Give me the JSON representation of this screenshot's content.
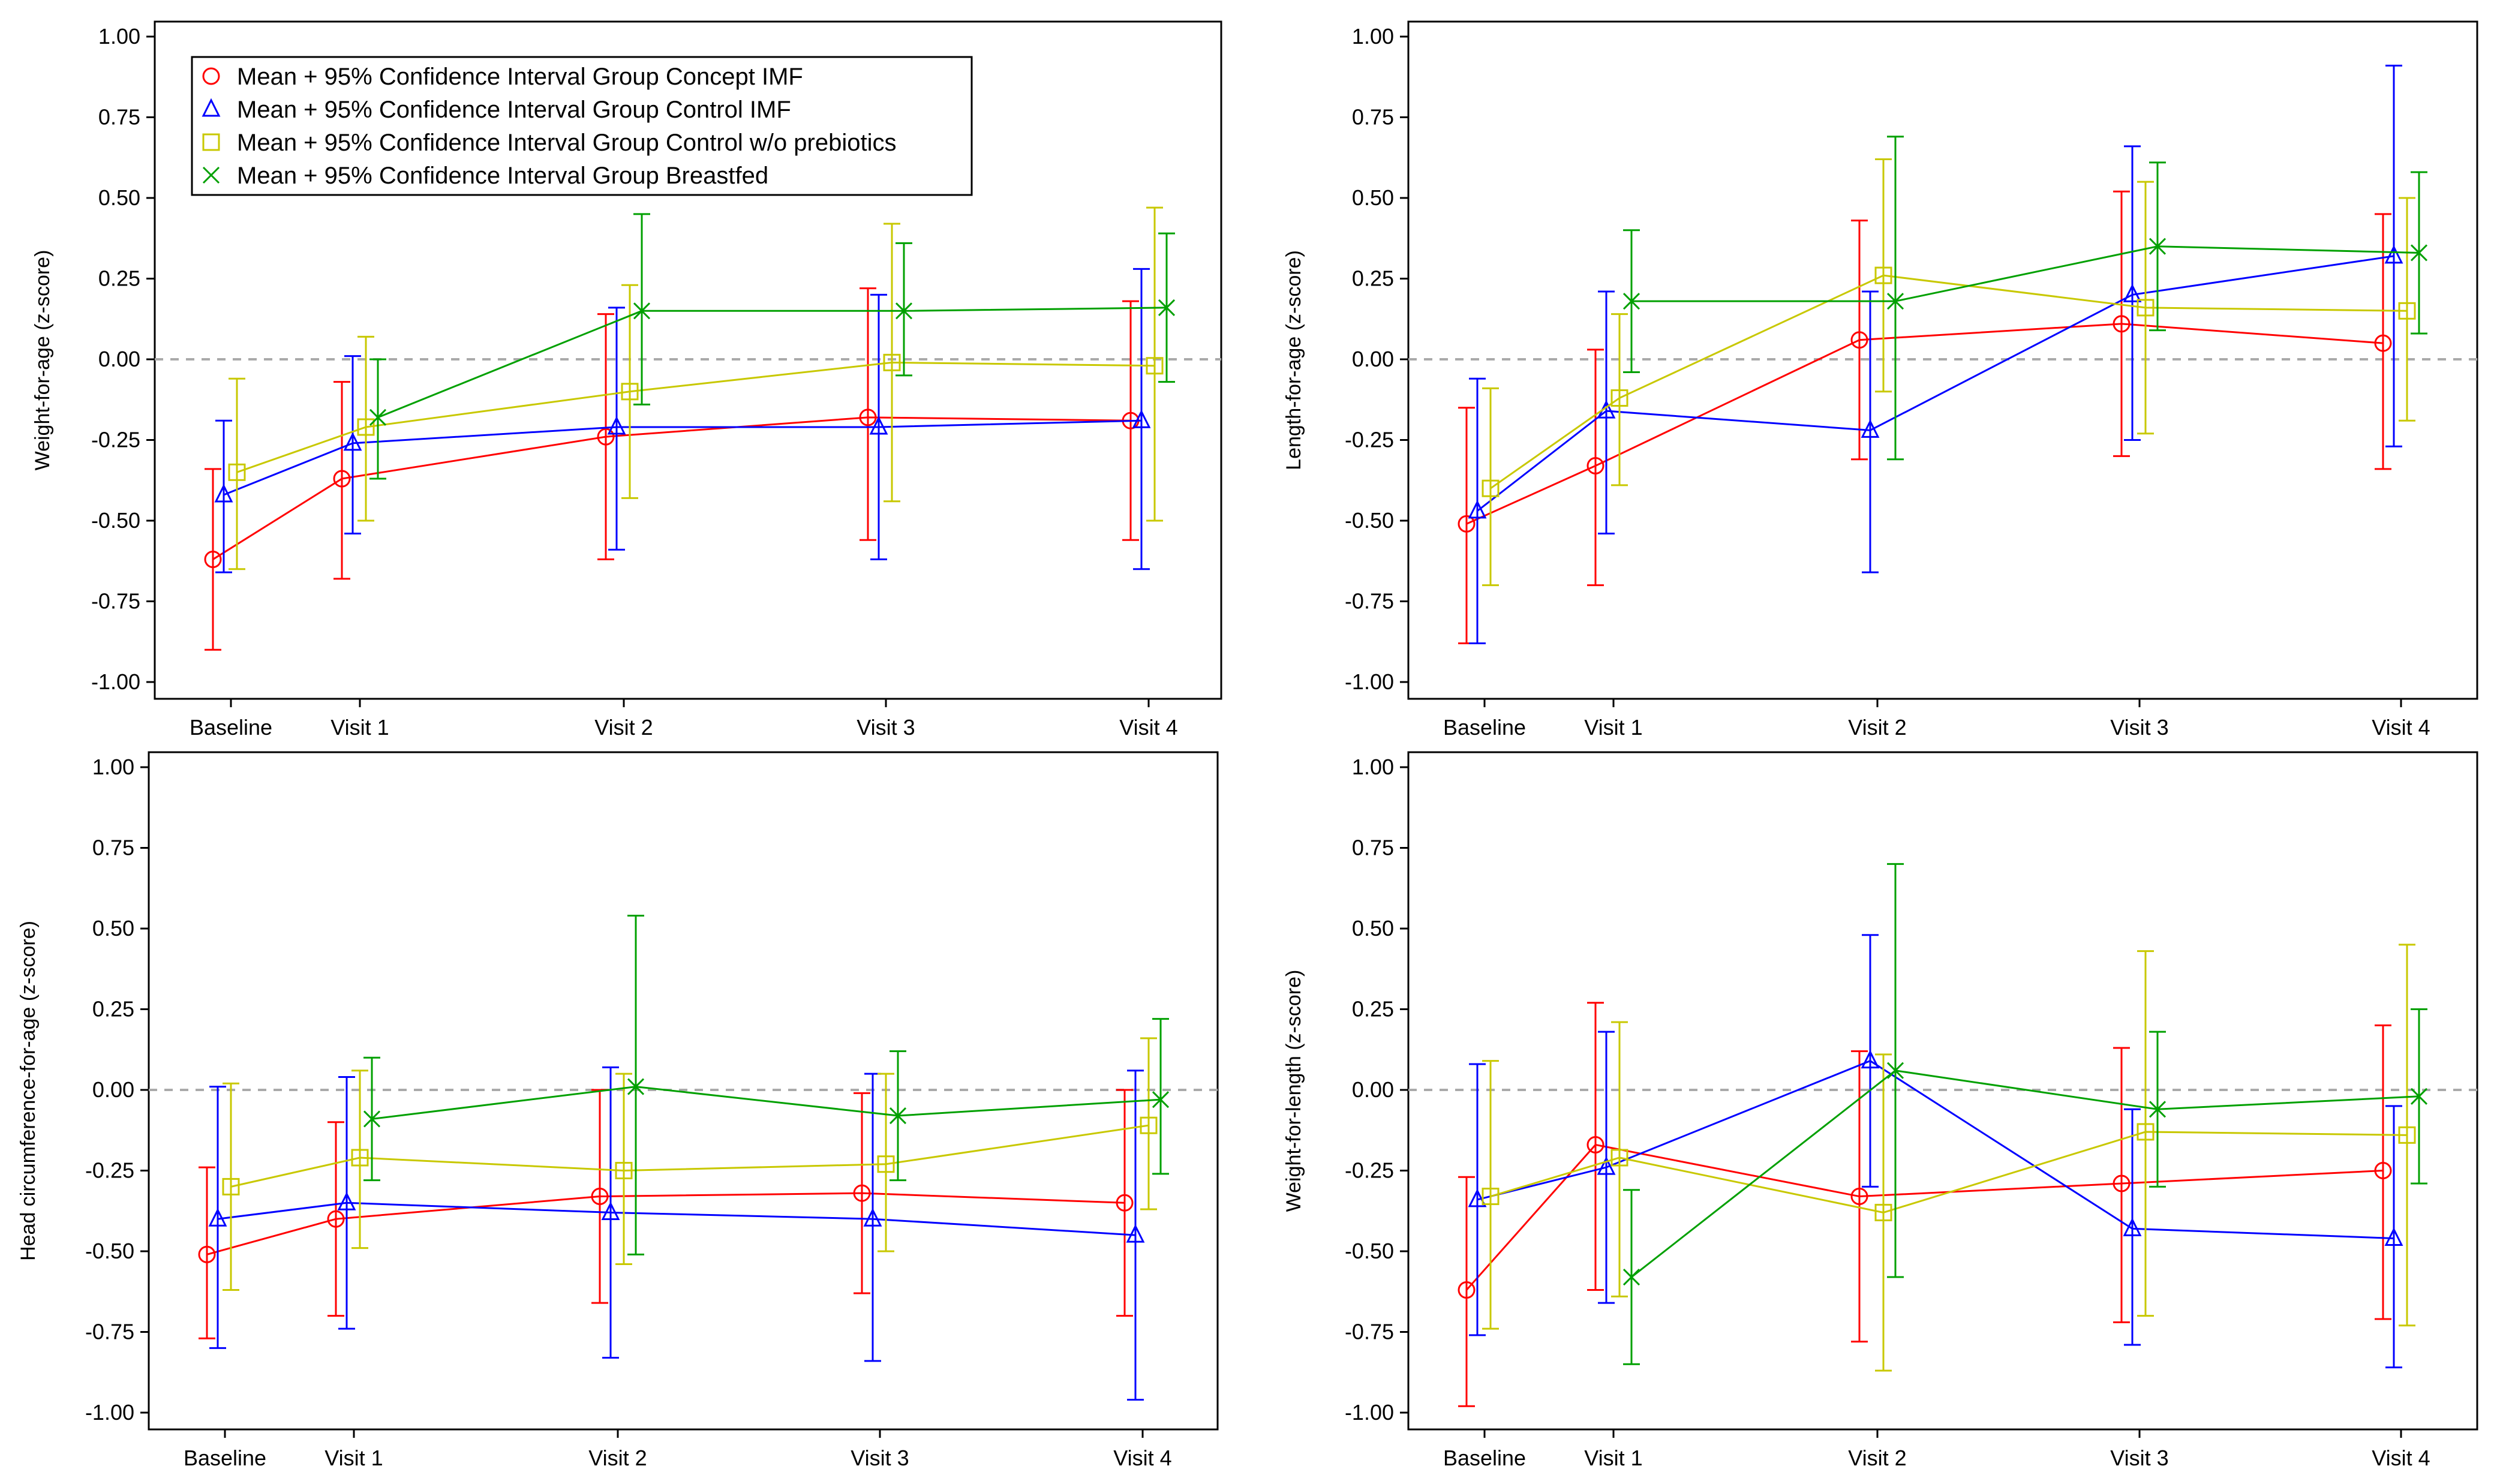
{
  "chart_data": [
    {
      "type": "line",
      "title": "",
      "xlabel": "",
      "ylabel": "Weight-for-age (z-score)",
      "categories": [
        "Baseline",
        "Visit 1",
        "Visit 2",
        "Visit 3",
        "Visit 4"
      ],
      "ylim": [
        -1.0,
        1.0
      ],
      "yticks": [
        "1.00",
        "0.75",
        "0.50",
        "0.25",
        "0.00",
        "-0.25",
        "-0.50",
        "-0.75",
        "-1.00"
      ],
      "legend": "top-left",
      "series": [
        {
          "name": "Mean + 95% Confidence Interval Group Concept IMF",
          "color": "#ff0000",
          "marker": "circle",
          "values": [
            -0.62,
            -0.37,
            -0.24,
            -0.18,
            -0.19
          ],
          "ci": [
            [
              -0.9,
              -0.34
            ],
            [
              -0.68,
              -0.07
            ],
            [
              -0.62,
              0.14
            ],
            [
              -0.56,
              0.22
            ],
            [
              -0.56,
              0.18
            ]
          ]
        },
        {
          "name": "Mean + 95% Confidence Interval Group Control IMF",
          "color": "#0000ff",
          "marker": "triangle",
          "values": [
            -0.42,
            -0.26,
            -0.21,
            -0.21,
            -0.19
          ],
          "ci": [
            [
              -0.66,
              -0.19
            ],
            [
              -0.54,
              0.01
            ],
            [
              -0.59,
              0.16
            ],
            [
              -0.62,
              0.2
            ],
            [
              -0.65,
              0.28
            ]
          ]
        },
        {
          "name": "Mean + 95% Confidence Interval Group Control w/o prebiotics",
          "color": "#c8c800",
          "marker": "square",
          "values": [
            -0.35,
            -0.21,
            -0.1,
            -0.01,
            -0.02
          ],
          "ci": [
            [
              -0.65,
              -0.06
            ],
            [
              -0.5,
              0.07
            ],
            [
              -0.43,
              0.23
            ],
            [
              -0.44,
              0.42
            ],
            [
              -0.5,
              0.47
            ]
          ]
        },
        {
          "name": "Mean + 95% Confidence Interval Group Breastfed",
          "color": "#00a000",
          "marker": "x",
          "values": [
            null,
            -0.18,
            0.15,
            0.15,
            0.16
          ],
          "ci": [
            null,
            [
              -0.37,
              0.0
            ],
            [
              -0.14,
              0.45
            ],
            [
              -0.05,
              0.36
            ],
            [
              -0.07,
              0.39
            ]
          ]
        }
      ]
    },
    {
      "type": "line",
      "title": "",
      "xlabel": "",
      "ylabel": "Length-for-age (z-score)",
      "categories": [
        "Baseline",
        "Visit 1",
        "Visit 2",
        "Visit 3",
        "Visit 4"
      ],
      "ylim": [
        -1.0,
        1.0
      ],
      "yticks": [
        "1.00",
        "0.75",
        "0.50",
        "0.25",
        "0.00",
        "-0.25",
        "-0.50",
        "-0.75",
        "-1.00"
      ],
      "series": [
        {
          "name": "Concept IMF",
          "color": "#ff0000",
          "marker": "circle",
          "values": [
            -0.51,
            -0.33,
            0.06,
            0.11,
            0.05
          ],
          "ci": [
            [
              -0.88,
              -0.15
            ],
            [
              -0.7,
              0.03
            ],
            [
              -0.31,
              0.43
            ],
            [
              -0.3,
              0.52
            ],
            [
              -0.34,
              0.45
            ]
          ]
        },
        {
          "name": "Control IMF",
          "color": "#0000ff",
          "marker": "triangle",
          "values": [
            -0.47,
            -0.16,
            -0.22,
            0.2,
            0.32
          ],
          "ci": [
            [
              -0.88,
              -0.06
            ],
            [
              -0.54,
              0.21
            ],
            [
              -0.66,
              0.21
            ],
            [
              -0.25,
              0.66
            ],
            [
              -0.27,
              0.91
            ]
          ]
        },
        {
          "name": "Control w/o prebiotics",
          "color": "#c8c800",
          "marker": "square",
          "values": [
            -0.4,
            -0.12,
            0.26,
            0.16,
            0.15
          ],
          "ci": [
            [
              -0.7,
              -0.09
            ],
            [
              -0.39,
              0.14
            ],
            [
              -0.1,
              0.62
            ],
            [
              -0.23,
              0.55
            ],
            [
              -0.19,
              0.5
            ]
          ]
        },
        {
          "name": "Breastfed",
          "color": "#00a000",
          "marker": "x",
          "values": [
            null,
            0.18,
            0.18,
            0.35,
            0.33
          ],
          "ci": [
            null,
            [
              -0.04,
              0.4
            ],
            [
              -0.31,
              0.69
            ],
            [
              0.09,
              0.61
            ],
            [
              0.08,
              0.58
            ]
          ]
        }
      ]
    },
    {
      "type": "line",
      "title": "",
      "xlabel": "",
      "ylabel": "Head circumference-for-age (z-score)",
      "categories": [
        "Baseline",
        "Visit 1",
        "Visit 2",
        "Visit 3",
        "Visit 4"
      ],
      "ylim": [
        -1.0,
        1.0
      ],
      "yticks": [
        "1.00",
        "0.75",
        "0.50",
        "0.25",
        "0.00",
        "-0.25",
        "-0.50",
        "-0.75",
        "-1.00"
      ],
      "series": [
        {
          "name": "Concept IMF",
          "color": "#ff0000",
          "marker": "circle",
          "values": [
            -0.51,
            -0.4,
            -0.33,
            -0.32,
            -0.35
          ],
          "ci": [
            [
              -0.77,
              -0.24
            ],
            [
              -0.7,
              -0.1
            ],
            [
              -0.66,
              0.0
            ],
            [
              -0.63,
              -0.01
            ],
            [
              -0.7,
              0.0
            ]
          ]
        },
        {
          "name": "Control IMF",
          "color": "#0000ff",
          "marker": "triangle",
          "values": [
            -0.4,
            -0.35,
            -0.38,
            -0.4,
            -0.45
          ],
          "ci": [
            [
              -0.8,
              0.01
            ],
            [
              -0.74,
              0.04
            ],
            [
              -0.83,
              0.07
            ],
            [
              -0.84,
              0.05
            ],
            [
              -0.96,
              0.06
            ]
          ]
        },
        {
          "name": "Control w/o prebiotics",
          "color": "#c8c800",
          "marker": "square",
          "values": [
            -0.3,
            -0.21,
            -0.25,
            -0.23,
            -0.11
          ],
          "ci": [
            [
              -0.62,
              0.02
            ],
            [
              -0.49,
              0.06
            ],
            [
              -0.54,
              0.05
            ],
            [
              -0.5,
              0.05
            ],
            [
              -0.37,
              0.16
            ]
          ]
        },
        {
          "name": "Breastfed",
          "color": "#00a000",
          "marker": "x",
          "values": [
            null,
            -0.09,
            0.01,
            -0.08,
            -0.03
          ],
          "ci": [
            null,
            [
              -0.28,
              0.1
            ],
            [
              -0.51,
              0.54
            ],
            [
              -0.28,
              0.12
            ],
            [
              -0.26,
              0.22
            ]
          ]
        }
      ]
    },
    {
      "type": "line",
      "title": "",
      "xlabel": "",
      "ylabel": "Weight-for-length (z-score)",
      "categories": [
        "Baseline",
        "Visit 1",
        "Visit 2",
        "Visit 3",
        "Visit 4"
      ],
      "ylim": [
        -1.0,
        1.0
      ],
      "yticks": [
        "1.00",
        "0.75",
        "0.50",
        "0.25",
        "0.00",
        "-0.25",
        "-0.50",
        "-0.75",
        "-1.00"
      ],
      "series": [
        {
          "name": "Concept IMF",
          "color": "#ff0000",
          "marker": "circle",
          "values": [
            -0.62,
            -0.17,
            -0.33,
            -0.29,
            -0.25
          ],
          "ci": [
            [
              -0.98,
              -0.27
            ],
            [
              -0.62,
              0.27
            ],
            [
              -0.78,
              0.12
            ],
            [
              -0.72,
              0.13
            ],
            [
              -0.71,
              0.2
            ]
          ]
        },
        {
          "name": "Control IMF",
          "color": "#0000ff",
          "marker": "triangle",
          "values": [
            -0.34,
            -0.24,
            0.09,
            -0.43,
            -0.46
          ],
          "ci": [
            [
              -0.76,
              0.08
            ],
            [
              -0.66,
              0.18
            ],
            [
              -0.3,
              0.48
            ],
            [
              -0.79,
              -0.06
            ],
            [
              -0.86,
              -0.05
            ]
          ]
        },
        {
          "name": "Control w/o prebiotics",
          "color": "#c8c800",
          "marker": "square",
          "values": [
            -0.33,
            -0.21,
            -0.38,
            -0.13,
            -0.14
          ],
          "ci": [
            [
              -0.74,
              0.09
            ],
            [
              -0.64,
              0.21
            ],
            [
              -0.87,
              0.11
            ],
            [
              -0.7,
              0.43
            ],
            [
              -0.73,
              0.45
            ]
          ]
        },
        {
          "name": "Breastfed",
          "color": "#00a000",
          "marker": "x",
          "values": [
            null,
            -0.58,
            0.06,
            -0.06,
            -0.02
          ],
          "ci": [
            null,
            [
              -0.85,
              -0.31
            ],
            [
              -0.58,
              0.7
            ],
            [
              -0.3,
              0.18
            ],
            [
              -0.29,
              0.25
            ]
          ]
        }
      ]
    }
  ]
}
